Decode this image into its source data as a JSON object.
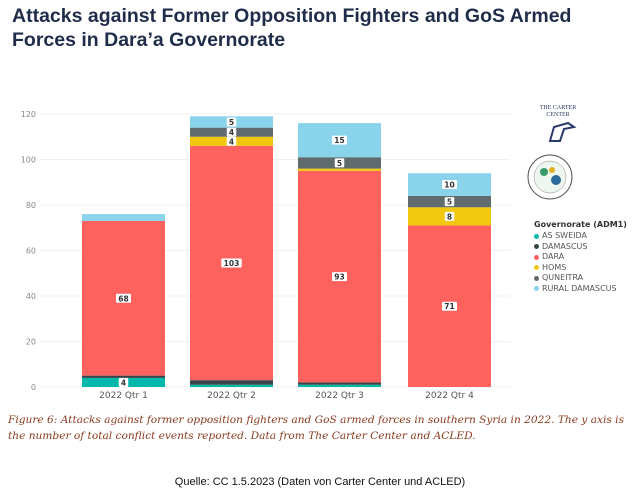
{
  "title": "Attacks against Former Opposition Fighters and GoS Armed Forces in Dara’a Governorate",
  "logos": {
    "carter_center": "THE CARTER CENTER",
    "acled": "ACLEDDATA.COM"
  },
  "chart_data": {
    "type": "bar",
    "stacked": true,
    "categories": [
      "2022 Qtr 1",
      "2022 Qtr 2",
      "2022 Qtr 3",
      "2022 Qtr 4"
    ],
    "ylim": [
      0,
      120
    ],
    "yticks": [
      0,
      20,
      40,
      60,
      80,
      100,
      120
    ],
    "grid": true,
    "legend": {
      "title": "Governorate (ADM1)",
      "placement": "right"
    },
    "series": [
      {
        "name": "AS SWEIDA",
        "color": "#01B8AA",
        "values": [
          4,
          1,
          1,
          0
        ],
        "labels": [
          "4",
          "",
          "",
          ""
        ]
      },
      {
        "name": "DAMASCUS",
        "color": "#374649",
        "values": [
          1,
          2,
          1,
          0
        ],
        "labels": [
          "",
          "",
          "",
          ""
        ]
      },
      {
        "name": "DARA",
        "color": "#FD625E",
        "values": [
          68,
          103,
          93,
          71
        ],
        "labels": [
          "68",
          "103",
          "93",
          "71"
        ]
      },
      {
        "name": "HOMS",
        "color": "#F2C80F",
        "values": [
          0,
          4,
          1,
          8
        ],
        "labels": [
          "",
          "4",
          "",
          "8"
        ]
      },
      {
        "name": "QUNEITRA",
        "color": "#5F6B6D",
        "values": [
          0,
          4,
          5,
          5
        ],
        "labels": [
          "",
          "4",
          "5",
          "5"
        ]
      },
      {
        "name": "RURAL DAMASCUS",
        "color": "#8AD4EB",
        "values": [
          3,
          5,
          15,
          10
        ],
        "labels": [
          "",
          "5",
          "15",
          "10"
        ]
      }
    ]
  },
  "caption": "Figure 6: Attacks against former opposition fighters and GoS armed forces in southern Syria in 2022. The y axis is the number of total conflict events reported. Data from The Carter Center and ACLED.",
  "source": "Quelle: CC 1.5.2023 (Daten von Carter Center und ACLED)"
}
